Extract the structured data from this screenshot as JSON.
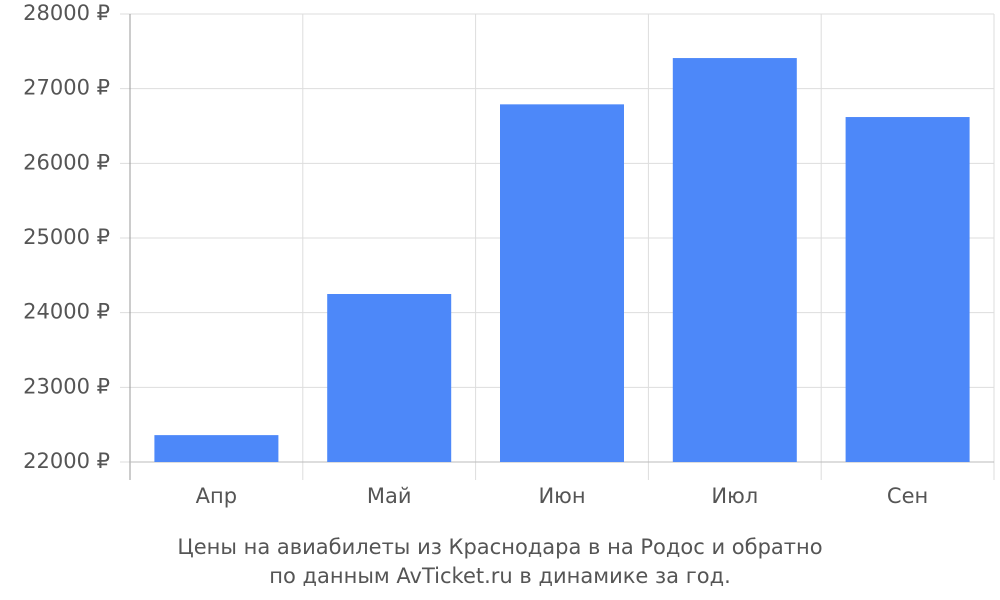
{
  "chart_data": {
    "type": "bar",
    "caption": [
      "Цены на авиабилеты из Краснодара в на Родос и обратно",
      "по данным AvTicket.ru в динамике за год."
    ],
    "categories": [
      "Апр",
      "Май",
      "Июн",
      "Июл",
      "Сен"
    ],
    "values": [
      22360,
      24250,
      26790,
      27410,
      26620
    ],
    "color": "#4d88f9",
    "ylim": [
      22000,
      28000
    ],
    "yticks": [
      {
        "value": 22000,
        "label": "22000 ₽"
      },
      {
        "value": 23000,
        "label": "23000 ₽"
      },
      {
        "value": 24000,
        "label": "24000 ₽"
      },
      {
        "value": 25000,
        "label": "25000 ₽"
      },
      {
        "value": 26000,
        "label": "26000 ₽"
      },
      {
        "value": 27000,
        "label": "27000 ₽"
      },
      {
        "value": 28000,
        "label": "28000 ₽"
      }
    ],
    "grid": true
  }
}
